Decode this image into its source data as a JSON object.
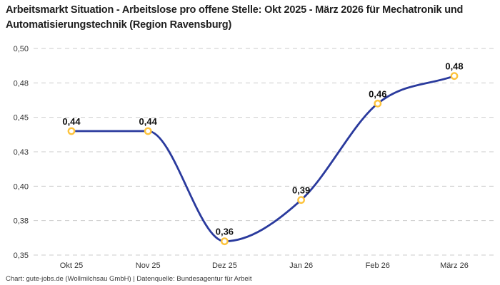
{
  "header": {
    "title": "Arbeitsmarkt Situation - Arbeitslose pro offene Stelle: Okt 2025 - März 2026 für Mechatronik und Automatisierungstechnik (Region Ravensburg)"
  },
  "footer": {
    "credit": "Chart: gute-jobs.de (Wollmilchsau GmbH) | Datenquelle: Bundesagentur für Arbeit"
  },
  "chart_data": {
    "type": "line",
    "title": "Arbeitsmarkt Situation - Arbeitslose pro offene Stelle: Okt 2025 - März 2026 für Mechatronik und Automatisierungstechnik (Region Ravensburg)",
    "categories": [
      "Okt 25",
      "Nov 25",
      "Dez 25",
      "Jan 26",
      "Feb 26",
      "März 26"
    ],
    "values": [
      0.44,
      0.44,
      0.36,
      0.39,
      0.46,
      0.48
    ],
    "point_labels": [
      "0,44",
      "0,44",
      "0,36",
      "0,39",
      "0,46",
      "0,48"
    ],
    "xlabel": "",
    "ylabel": "",
    "ylim": [
      0.35,
      0.5
    ],
    "yticks": {
      "values": [
        0.5,
        0.475,
        0.45,
        0.425,
        0.4,
        0.375,
        0.35
      ],
      "labels": [
        "0,50",
        "0,48",
        "0,45",
        "0,43",
        "0,40",
        "0,38",
        "0,35"
      ]
    },
    "grid": "horizontal-dashed",
    "legend": "none",
    "curve": "smooth-monotone",
    "colors": {
      "line": "#2A3A9D",
      "marker_stroke": "#FDC33C",
      "marker_fill": "#FFFFFF",
      "grid": "#CBCBCB",
      "tick_text": "#333333",
      "point_label_text": "#111111",
      "title_text": "#1F1F1F",
      "background": "#FFFFFF"
    }
  }
}
